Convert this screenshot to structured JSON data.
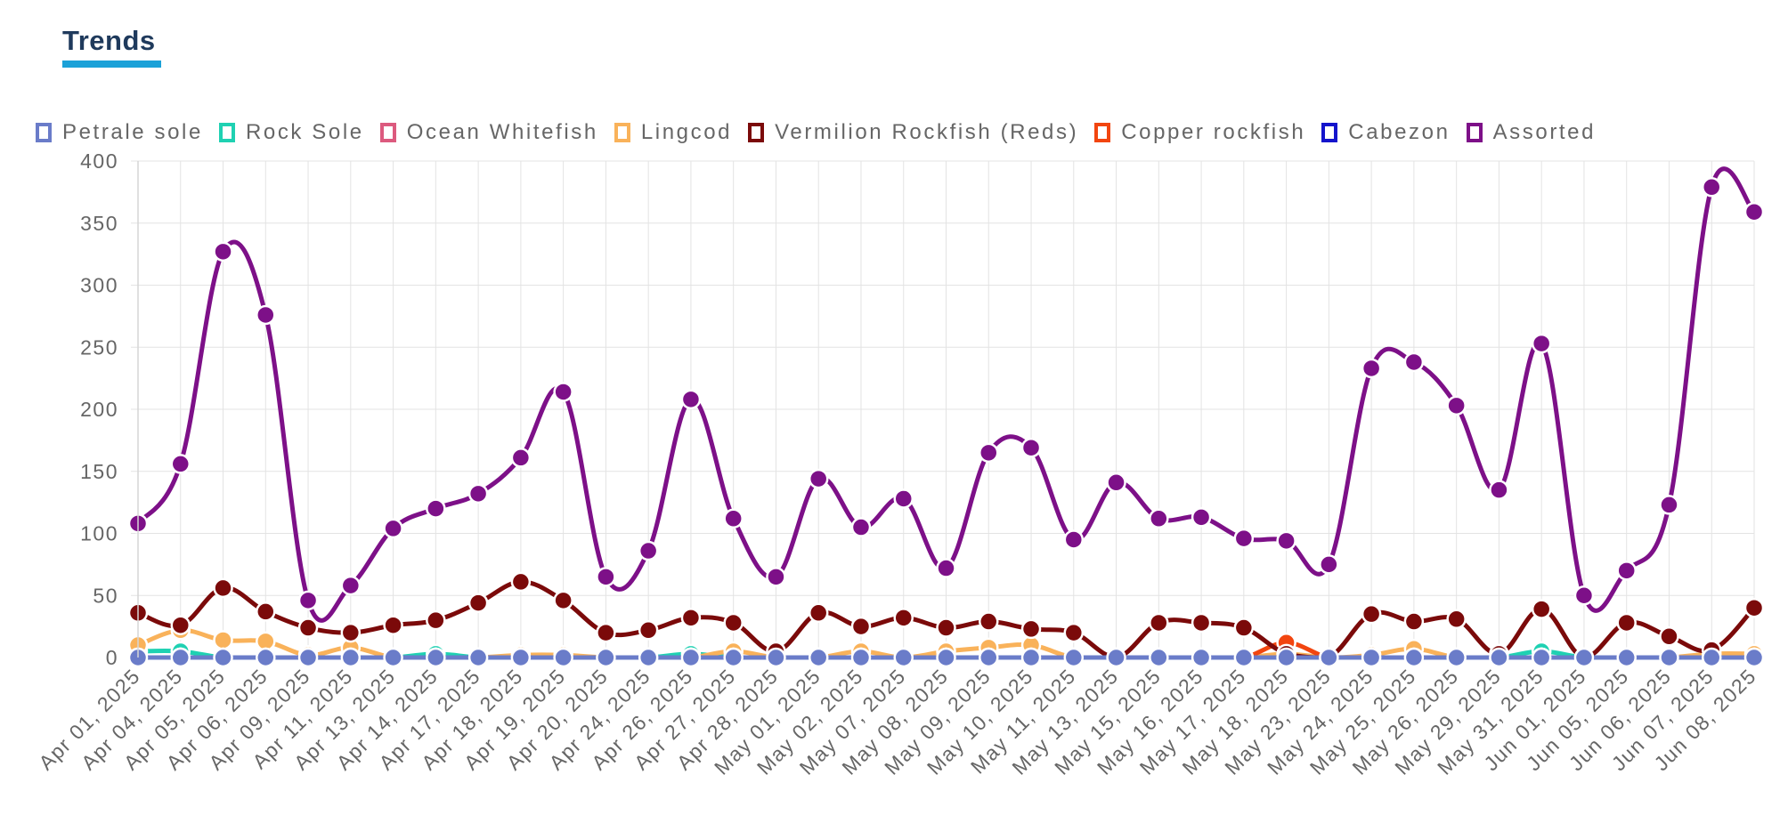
{
  "header": {
    "title": "Trends"
  },
  "chart_data": {
    "type": "line",
    "categories": [
      "Apr 01, 2025",
      "Apr 04, 2025",
      "Apr 05, 2025",
      "Apr 06, 2025",
      "Apr 09, 2025",
      "Apr 11, 2025",
      "Apr 13, 2025",
      "Apr 14, 2025",
      "Apr 17, 2025",
      "Apr 18, 2025",
      "Apr 19, 2025",
      "Apr 20, 2025",
      "Apr 24, 2025",
      "Apr 26, 2025",
      "Apr 27, 2025",
      "Apr 28, 2025",
      "May 01, 2025",
      "May 02, 2025",
      "May 07, 2025",
      "May 08, 2025",
      "May 09, 2025",
      "May 10, 2025",
      "May 11, 2025",
      "May 13, 2025",
      "May 15, 2025",
      "May 16, 2025",
      "May 17, 2025",
      "May 18, 2025",
      "May 23, 2025",
      "May 24, 2025",
      "May 25, 2025",
      "May 26, 2025",
      "May 29, 2025",
      "May 31, 2025",
      "Jun 01, 2025",
      "Jun 05, 2025",
      "Jun 06, 2025",
      "Jun 07, 2025",
      "Jun 08, 2025"
    ],
    "ylim": [
      0,
      400
    ],
    "yticks": [
      "0",
      "50",
      "100",
      "150",
      "200",
      "250",
      "300",
      "350",
      "400"
    ],
    "grid": true,
    "legend_position": "top",
    "series": [
      {
        "name": "Petrale sole",
        "color": "#6a7cc9",
        "values": [
          0,
          0,
          0,
          0,
          0,
          0,
          0,
          0,
          0,
          0,
          0,
          0,
          0,
          0,
          0,
          0,
          0,
          0,
          0,
          0,
          0,
          0,
          0,
          0,
          0,
          0,
          0,
          0,
          0,
          0,
          0,
          0,
          0,
          0,
          0,
          0,
          0,
          0,
          0
        ]
      },
      {
        "name": "Rock Sole",
        "color": "#1fd1b2",
        "values": [
          5,
          5,
          0,
          0,
          0,
          0,
          0,
          3,
          0,
          0,
          0,
          0,
          0,
          3,
          0,
          0,
          0,
          0,
          0,
          0,
          0,
          0,
          0,
          0,
          0,
          0,
          0,
          0,
          0,
          0,
          0,
          0,
          0,
          5,
          0,
          0,
          0,
          0,
          0
        ]
      },
      {
        "name": "Ocean Whitefish",
        "color": "#dc5a7e",
        "values": [
          0,
          0,
          0,
          0,
          0,
          0,
          0,
          0,
          0,
          0,
          0,
          0,
          0,
          0,
          0,
          0,
          0,
          0,
          0,
          0,
          0,
          0,
          0,
          0,
          0,
          0,
          0,
          0,
          0,
          0,
          0,
          0,
          0,
          0,
          0,
          0,
          0,
          0,
          0
        ]
      },
      {
        "name": "Lingcod",
        "color": "#f9b25a",
        "values": [
          10,
          22,
          14,
          13,
          2,
          8,
          0,
          0,
          0,
          2,
          2,
          0,
          0,
          0,
          5,
          0,
          0,
          5,
          0,
          5,
          8,
          10,
          0,
          0,
          0,
          0,
          0,
          3,
          0,
          2,
          7,
          0,
          0,
          0,
          0,
          0,
          0,
          3,
          3
        ]
      },
      {
        "name": "Vermilion Rockfish (Reds)",
        "color": "#7b0a0a",
        "values": [
          36,
          26,
          56,
          37,
          24,
          20,
          26,
          30,
          44,
          61,
          46,
          20,
          22,
          32,
          28,
          5,
          36,
          25,
          32,
          24,
          29,
          23,
          20,
          0,
          28,
          28,
          24,
          3,
          0,
          35,
          29,
          31,
          3,
          39,
          0,
          28,
          17,
          6,
          40
        ]
      },
      {
        "name": "Copper rockfish",
        "color": "#f2450f",
        "values": [
          0,
          0,
          0,
          0,
          0,
          0,
          0,
          0,
          0,
          0,
          0,
          0,
          0,
          0,
          0,
          0,
          0,
          0,
          0,
          0,
          0,
          0,
          0,
          0,
          0,
          0,
          0,
          12,
          0,
          0,
          0,
          0,
          0,
          0,
          0,
          0,
          0,
          0,
          0
        ]
      },
      {
        "name": "Cabezon",
        "color": "#1414cc",
        "values": [
          0,
          0,
          0,
          0,
          0,
          0,
          0,
          0,
          0,
          0,
          0,
          0,
          0,
          0,
          0,
          0,
          0,
          0,
          0,
          0,
          0,
          0,
          0,
          0,
          0,
          0,
          0,
          0,
          0,
          0,
          0,
          0,
          0,
          0,
          0,
          0,
          0,
          0,
          0
        ]
      },
      {
        "name": "Assorted",
        "color": "#7d1088",
        "values": [
          108,
          156,
          327,
          276,
          46,
          58,
          104,
          120,
          132,
          161,
          214,
          65,
          86,
          208,
          112,
          65,
          144,
          105,
          128,
          72,
          165,
          169,
          95,
          141,
          112,
          113,
          96,
          94,
          75,
          233,
          238,
          203,
          135,
          253,
          50,
          70,
          123,
          379,
          359
        ]
      }
    ]
  }
}
